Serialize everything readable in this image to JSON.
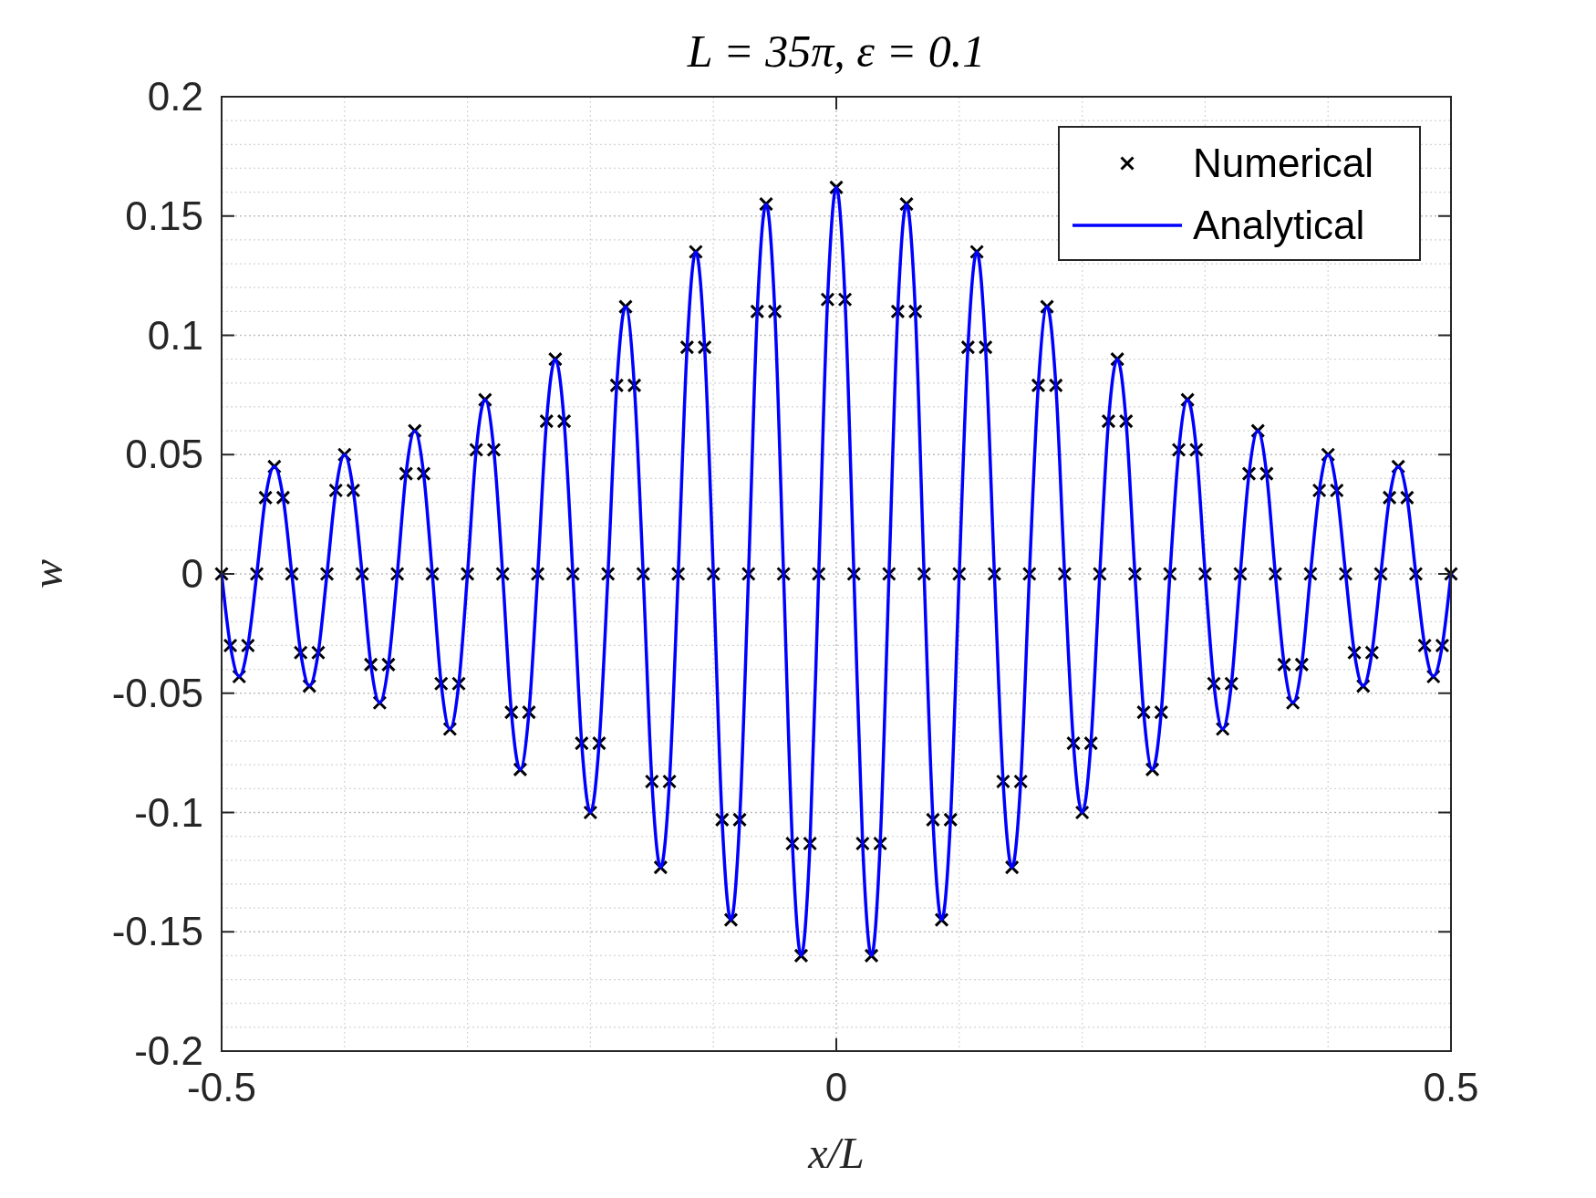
{
  "chart_data": {
    "type": "line",
    "title": "L = 35π, ε = 0.1",
    "xlabel": "x/L",
    "ylabel": "w",
    "x": [
      -0.5,
      -0.4929,
      -0.4857,
      -0.4786,
      -0.4714,
      -0.4643,
      -0.4571,
      -0.45,
      -0.4429,
      -0.4357,
      -0.4286,
      -0.4214,
      -0.4143,
      -0.4071,
      -0.4,
      -0.3929,
      -0.3857,
      -0.3786,
      -0.3714,
      -0.3643,
      -0.3571,
      -0.35,
      -0.3429,
      -0.3357,
      -0.3286,
      -0.3214,
      -0.3143,
      -0.3071,
      -0.3,
      -0.2929,
      -0.2857,
      -0.2786,
      -0.2714,
      -0.2643,
      -0.2571,
      -0.25,
      -0.2429,
      -0.2357,
      -0.2286,
      -0.2214,
      -0.2143,
      -0.2071,
      -0.2,
      -0.1929,
      -0.1857,
      -0.1786,
      -0.1714,
      -0.1643,
      -0.1571,
      -0.15,
      -0.1429,
      -0.1357,
      -0.1286,
      -0.1214,
      -0.1143,
      -0.1071,
      -0.1,
      -0.0929,
      -0.0857,
      -0.0786,
      -0.0714,
      -0.0643,
      -0.0571,
      -0.05,
      -0.0429,
      -0.0357,
      -0.0286,
      -0.0214,
      -0.0143,
      -0.0071,
      0,
      0.0071,
      0.0143,
      0.0214,
      0.0286,
      0.0357,
      0.0429,
      0.05,
      0.0571,
      0.0643,
      0.0714,
      0.0786,
      0.0857,
      0.0929,
      0.1,
      0.1071,
      0.1143,
      0.1214,
      0.1286,
      0.1357,
      0.1429,
      0.15,
      0.1571,
      0.1643,
      0.1714,
      0.1786,
      0.1857,
      0.1929,
      0.2,
      0.2071,
      0.2143,
      0.2214,
      0.2286,
      0.2357,
      0.2429,
      0.25,
      0.2571,
      0.2643,
      0.2714,
      0.2786,
      0.2857,
      0.2929,
      0.3,
      0.3071,
      0.3143,
      0.3214,
      0.3286,
      0.3357,
      0.3429,
      0.35,
      0.3571,
      0.3643,
      0.3714,
      0.3786,
      0.3857,
      0.3929,
      0.4,
      0.4071,
      0.4143,
      0.4214,
      0.4286,
      0.4357,
      0.4429,
      0.45,
      0.4571,
      0.4643,
      0.4714,
      0.4786,
      0.4857,
      0.4929,
      0.5
    ],
    "series": [
      {
        "name": "Numerical",
        "type": "scatter",
        "marker": "cross",
        "color": "#000000",
        "values": [
          0,
          -0.03,
          -0.043,
          -0.03,
          0,
          0.032,
          0.045,
          0.032,
          0,
          -0.033,
          -0.047,
          -0.033,
          0,
          0.035,
          0.05,
          0.035,
          0,
          -0.038,
          -0.054,
          -0.038,
          0,
          0.042,
          0.06,
          0.042,
          0,
          -0.046,
          -0.065,
          -0.046,
          0,
          0.052,
          0.073,
          0.052,
          0,
          -0.058,
          -0.082,
          -0.058,
          0,
          0.064,
          0.09,
          0.064,
          0,
          -0.071,
          -0.1,
          -0.071,
          0,
          0.079,
          0.112,
          0.079,
          0,
          -0.087,
          -0.123,
          -0.087,
          0,
          0.095,
          0.135,
          0.095,
          0,
          -0.103,
          -0.145,
          -0.103,
          0,
          0.11,
          0.155,
          0.11,
          0,
          -0.113,
          -0.16,
          -0.113,
          0,
          0.115,
          0.162,
          0.115,
          0,
          -0.113,
          -0.16,
          -0.113,
          0,
          0.11,
          0.155,
          0.11,
          0,
          -0.103,
          -0.145,
          -0.103,
          0,
          0.095,
          0.135,
          0.095,
          0,
          -0.087,
          -0.123,
          -0.087,
          0,
          0.079,
          0.112,
          0.079,
          0,
          -0.071,
          -0.1,
          -0.071,
          0,
          0.064,
          0.09,
          0.064,
          0,
          -0.058,
          -0.082,
          -0.058,
          0,
          0.052,
          0.073,
          0.052,
          0,
          -0.046,
          -0.065,
          -0.046,
          0,
          0.042,
          0.06,
          0.042,
          0,
          -0.038,
          -0.054,
          -0.038,
          0,
          0.035,
          0.05,
          0.035,
          0,
          -0.033,
          -0.047,
          -0.033,
          0,
          0.032,
          0.045,
          0.032,
          0,
          -0.03,
          -0.043,
          -0.03,
          0
        ]
      },
      {
        "name": "Analytical",
        "marker": "none",
        "color": "#0000ff",
        "values": [
          0,
          -0.03,
          -0.043,
          -0.03,
          0,
          0.032,
          0.045,
          0.032,
          0,
          -0.033,
          -0.047,
          -0.033,
          0,
          0.035,
          0.05,
          0.035,
          0,
          -0.038,
          -0.054,
          -0.038,
          0,
          0.042,
          0.06,
          0.042,
          0,
          -0.046,
          -0.065,
          -0.046,
          0,
          0.052,
          0.073,
          0.052,
          0,
          -0.058,
          -0.082,
          -0.058,
          0,
          0.064,
          0.09,
          0.064,
          0,
          -0.071,
          -0.1,
          -0.071,
          0,
          0.079,
          0.112,
          0.079,
          0,
          -0.087,
          -0.123,
          -0.087,
          0,
          0.095,
          0.135,
          0.095,
          0,
          -0.103,
          -0.145,
          -0.103,
          0,
          0.11,
          0.155,
          0.11,
          0,
          -0.113,
          -0.16,
          -0.113,
          0,
          0.115,
          0.162,
          0.115,
          0,
          -0.113,
          -0.16,
          -0.113,
          0,
          0.11,
          0.155,
          0.11,
          0,
          -0.103,
          -0.145,
          -0.103,
          0,
          0.095,
          0.135,
          0.095,
          0,
          -0.087,
          -0.123,
          -0.087,
          0,
          0.079,
          0.112,
          0.079,
          0,
          -0.071,
          -0.1,
          -0.071,
          0,
          0.064,
          0.09,
          0.064,
          0,
          -0.058,
          -0.082,
          -0.058,
          0,
          0.052,
          0.073,
          0.052,
          0,
          -0.046,
          -0.065,
          -0.046,
          0,
          0.042,
          0.06,
          0.042,
          0,
          -0.038,
          -0.054,
          -0.038,
          0,
          0.035,
          0.05,
          0.035,
          0,
          -0.033,
          -0.047,
          -0.033,
          0,
          0.032,
          0.045,
          0.032,
          0,
          -0.03,
          -0.043,
          -0.03,
          0
        ]
      }
    ],
    "xlim": [
      -0.5,
      0.5
    ],
    "xticks": [
      -0.5,
      0,
      0.5
    ],
    "ylim": [
      -0.2,
      0.2
    ],
    "yticks": [
      -0.2,
      -0.15,
      -0.1,
      -0.05,
      0,
      0.05,
      0.1,
      0.15,
      0.2
    ],
    "grid": true,
    "legend": "top right"
  }
}
